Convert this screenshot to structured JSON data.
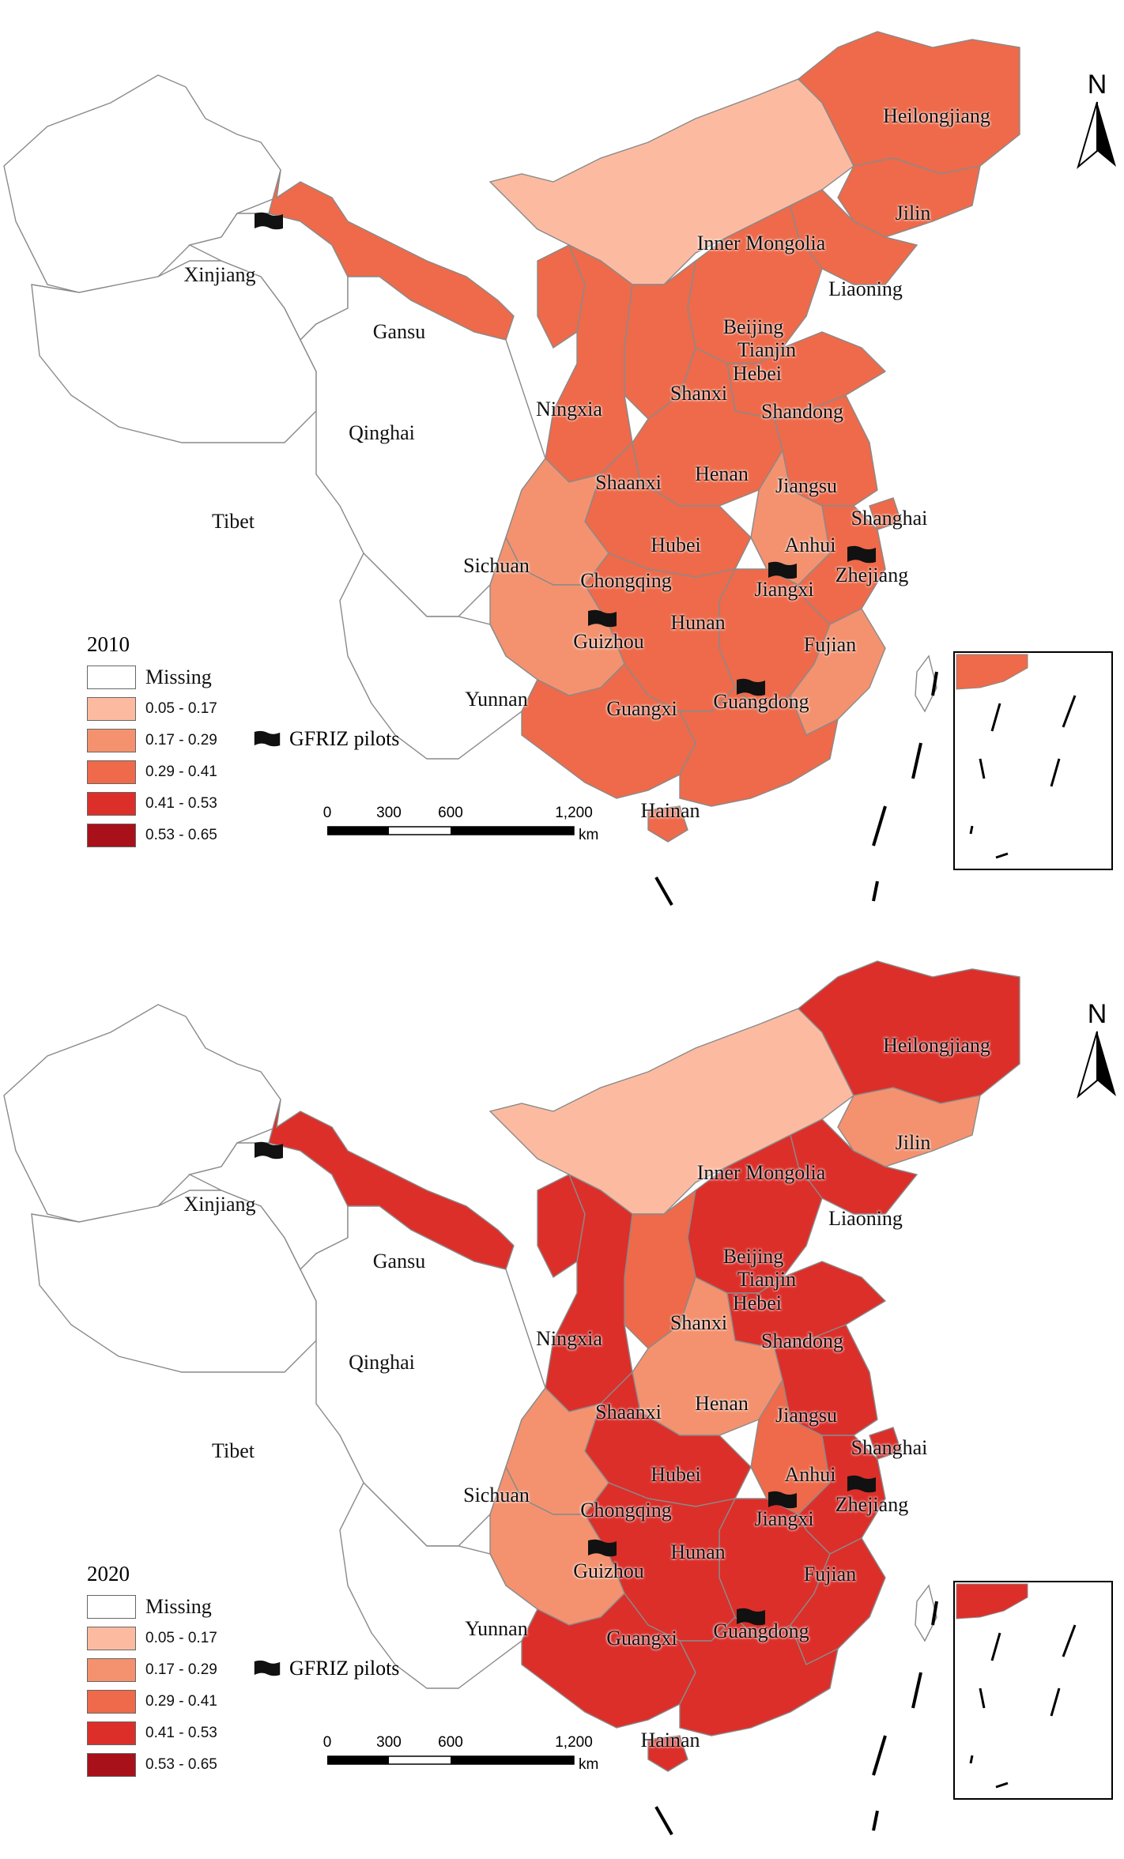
{
  "panels": [
    {
      "year": "2010",
      "shade": {
        "Heilongjiang": 3,
        "Jilin": 3,
        "Liaoning": 3,
        "Inner Mongolia": 1,
        "Beijing": 3,
        "Tianjin": 3,
        "Hebei": 3,
        "Shanxi": 3,
        "Shandong": 3,
        "Henan": 3,
        "Shaanxi": 3,
        "Ningxia": 3,
        "Gansu": 3,
        "Jiangsu": 3,
        "Shanghai": 3,
        "Anhui": 2,
        "Hubei": 3,
        "Zhejiang": 3,
        "Jiangxi": 3,
        "Hunan": 3,
        "Fujian": 2,
        "Guangdong": 3,
        "Guangxi": 3,
        "Hainan": 3,
        "Chongqing": 2,
        "Guizhou": 2,
        "Sichuan": 0,
        "Yunnan": 0,
        "Qinghai": 0,
        "Tibet": 0,
        "Xinjiang": 0
      }
    },
    {
      "year": "2020",
      "shade": {
        "Heilongjiang": 4,
        "Jilin": 2,
        "Liaoning": 4,
        "Inner Mongolia": 1,
        "Beijing": 4,
        "Tianjin": 4,
        "Hebei": 4,
        "Shanxi": 3,
        "Shandong": 4,
        "Henan": 2,
        "Shaanxi": 4,
        "Ningxia": 4,
        "Gansu": 4,
        "Jiangsu": 4,
        "Shanghai": 4,
        "Anhui": 3,
        "Hubei": 4,
        "Zhejiang": 4,
        "Jiangxi": 4,
        "Hunan": 4,
        "Fujian": 4,
        "Guangdong": 4,
        "Guangxi": 4,
        "Hainan": 4,
        "Chongqing": 2,
        "Guizhou": 2,
        "Sichuan": 0,
        "Yunnan": 0,
        "Qinghai": 0,
        "Tibet": 0,
        "Xinjiang": 0
      }
    }
  ],
  "legend": {
    "classes": [
      {
        "label": "Missing",
        "color": "#ffffff"
      },
      {
        "label": "0.05 - 0.17",
        "color": "#fcbba1"
      },
      {
        "label": "0.17 - 0.29",
        "color": "#f4926f"
      },
      {
        "label": "0.29 - 0.41",
        "color": "#ee6a4a"
      },
      {
        "label": "0.41 - 0.53",
        "color": "#dc2f2a"
      },
      {
        "label": "0.53 - 0.65",
        "color": "#a8101a"
      }
    ],
    "pilots_label": "GFRIZ pilots"
  },
  "provinces": [
    "Heilongjiang",
    "Jilin",
    "Inner Mongolia",
    "Liaoning",
    "Xinjiang",
    "Gansu",
    "Beijing",
    "Tianjin",
    "Hebei",
    "Ningxia",
    "Shanxi",
    "Qinghai",
    "Shandong",
    "Shaanxi",
    "Henan",
    "Jiangsu",
    "Tibet",
    "Shanghai",
    "Hubei",
    "Anhui",
    "Sichuan",
    "Zhejiang",
    "Chongqing",
    "Jiangxi",
    "Hunan",
    "Guizhou",
    "Fujian",
    "Yunnan",
    "Guangxi",
    "Guangdong",
    "Hainan"
  ],
  "scale": {
    "ticks": [
      "0",
      "300",
      "600",
      "1,200"
    ],
    "unit": "km"
  },
  "north": "N",
  "pilots": [
    "Xinjiang",
    "Guizhou",
    "Jiangxi",
    "Zhejiang",
    "Guangdong"
  ]
}
